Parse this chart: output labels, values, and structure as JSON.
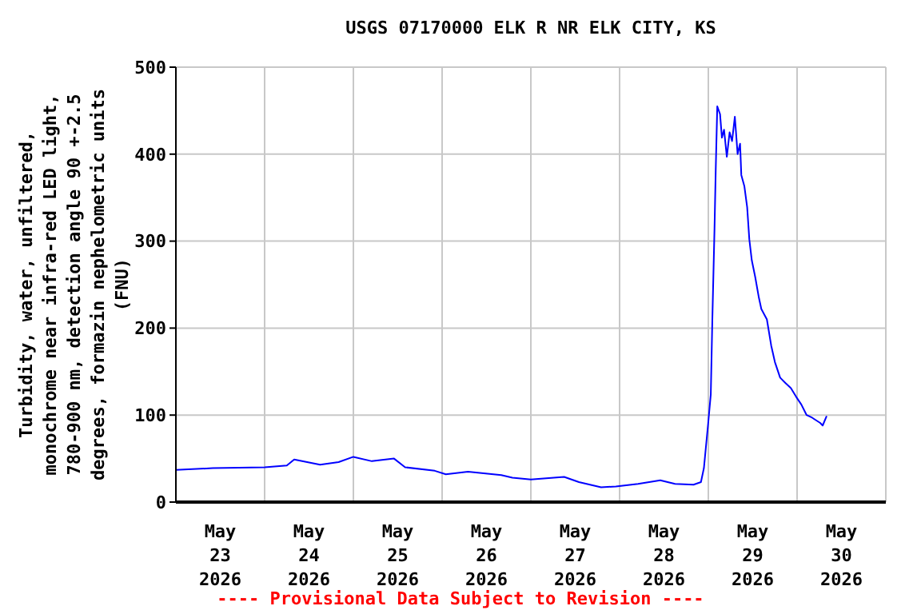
{
  "chart_data": {
    "type": "line",
    "title": "USGS 07170000 ELK R NR ELK CITY, KS",
    "ylabel": "Turbidity, water, unfiltered, monochrome near infra-red LED light, 780-900 nm, detection angle 90 +-2.5 degrees, formazin nephelometric units (FNU)",
    "annotations": [
      "---- Provisional Data Subject to Revision ----"
    ],
    "x": [
      "2026-05-23T00:00",
      "2026-05-23T10:00",
      "2026-05-24T00:00",
      "2026-05-24T06:00",
      "2026-05-24T08:00",
      "2026-05-24T15:00",
      "2026-05-24T20:00",
      "2026-05-25T00:00",
      "2026-05-25T05:00",
      "2026-05-25T11:00",
      "2026-05-25T14:00",
      "2026-05-25T22:00",
      "2026-05-26T01:00",
      "2026-05-26T07:00",
      "2026-05-26T16:00",
      "2026-05-26T19:00",
      "2026-05-27T00:00",
      "2026-05-27T09:00",
      "2026-05-27T13:00",
      "2026-05-27T19:00",
      "2026-05-27T23:00",
      "2026-05-28T05:00",
      "2026-05-28T11:00",
      "2026-05-28T15:00",
      "2026-05-28T20:00",
      "2026-05-28T22:00",
      "2026-05-28T22:48",
      "2026-05-28T23:54",
      "2026-05-29T00:40",
      "2026-05-29T01:05",
      "2026-05-29T01:40",
      "2026-05-29T02:00",
      "2026-05-29T02:25",
      "2026-05-29T03:10",
      "2026-05-29T03:40",
      "2026-05-29T04:15",
      "2026-05-29T05:00",
      "2026-05-29T05:45",
      "2026-05-29T06:25",
      "2026-05-29T07:10",
      "2026-05-29T07:55",
      "2026-05-29T08:35",
      "2026-05-29T08:55",
      "2026-05-29T09:45",
      "2026-05-29T10:30",
      "2026-05-29T11:05",
      "2026-05-29T11:45",
      "2026-05-29T12:40",
      "2026-05-29T13:40",
      "2026-05-29T14:20",
      "2026-05-29T15:50",
      "2026-05-29T17:00",
      "2026-05-29T18:00",
      "2026-05-29T19:25",
      "2026-05-29T20:50",
      "2026-05-29T22:20",
      "2026-05-29T23:45",
      "2026-05-30T01:10",
      "2026-05-30T02:35",
      "2026-05-30T04:05",
      "2026-05-30T06:15",
      "2026-05-30T06:55",
      "2026-05-30T08:00"
    ],
    "series": [
      {
        "color": "#0000ff",
        "values": [
          37,
          39,
          40,
          42,
          49,
          43,
          46,
          52,
          47,
          50,
          40,
          36,
          32,
          35,
          31,
          28,
          26,
          29,
          23,
          17,
          18,
          21,
          25,
          21,
          20,
          23,
          39,
          88,
          124,
          210,
          314,
          382,
          455,
          446,
          419,
          428,
          397,
          425,
          415,
          443,
          400,
          412,
          376,
          363,
          339,
          302,
          278,
          259,
          235,
          222,
          210,
          180,
          161,
          143,
          137,
          131,
          121,
          112,
          100,
          97,
          91,
          88,
          99
        ]
      }
    ],
    "marker": "none",
    "line_style": "solid",
    "grid": true,
    "xlim": [
      "2026-05-23T00:00",
      "2026-05-31T00:00"
    ],
    "xticks": [
      {
        "value": "2026-05-23T00:00",
        "label": null
      },
      {
        "value": "2026-05-23T12:00",
        "label": "May 23 2026"
      },
      {
        "value": "2026-05-24T00:00",
        "label": null
      },
      {
        "value": "2026-05-24T12:00",
        "label": "May 24 2026"
      },
      {
        "value": "2026-05-25T00:00",
        "label": null
      },
      {
        "value": "2026-05-25T12:00",
        "label": "May 25 2026"
      },
      {
        "value": "2026-05-26T00:00",
        "label": null
      },
      {
        "value": "2026-05-26T12:00",
        "label": "May 26 2026"
      },
      {
        "value": "2026-05-27T00:00",
        "label": null
      },
      {
        "value": "2026-05-27T12:00",
        "label": "May 27 2026"
      },
      {
        "value": "2026-05-28T00:00",
        "label": null
      },
      {
        "value": "2026-05-28T12:00",
        "label": "May 28 2026"
      },
      {
        "value": "2026-05-29T00:00",
        "label": null
      },
      {
        "value": "2026-05-29T12:00",
        "label": "May 29 2026"
      },
      {
        "value": "2026-05-30T00:00",
        "label": null
      },
      {
        "value": "2026-05-30T12:00",
        "label": "May 30 2026"
      },
      {
        "value": "2026-05-31T00:00",
        "label": null
      }
    ],
    "ylim": [
      0,
      500
    ],
    "yticks": [
      0,
      100,
      200,
      300,
      400,
      500
    ]
  }
}
